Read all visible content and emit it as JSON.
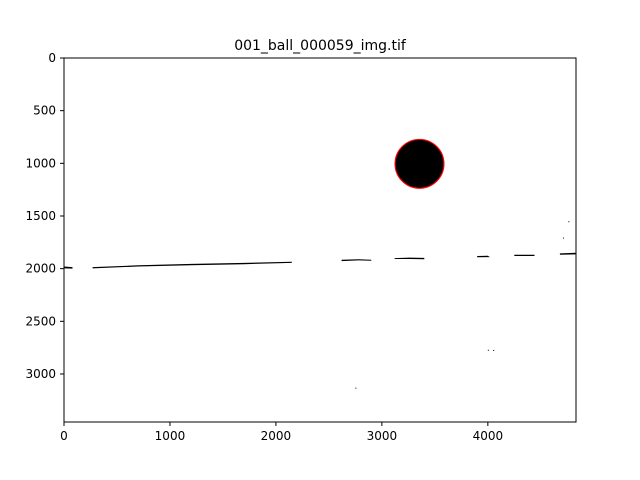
{
  "figure": {
    "title": "001_ball_000059_img.tif",
    "x_ticks": [
      0,
      1000,
      2000,
      3000,
      4000
    ],
    "y_ticks": [
      0,
      500,
      1000,
      1500,
      2000,
      2500,
      3000
    ],
    "x_extent": [
      0,
      4832
    ],
    "y_extent": [
      3456,
      0
    ],
    "image": {
      "background": "#ffffff",
      "ball": {
        "cx": 3355,
        "cy": 1005,
        "r": 230,
        "fill": "#000000",
        "outline": "#ff0000"
      },
      "streaks": [
        {
          "points": [
            [
              0,
              1980
            ],
            [
              80,
              1985
            ],
            [
              80,
              2000
            ],
            [
              0,
              1998
            ]
          ]
        },
        {
          "points": [
            [
              270,
              1985
            ],
            [
              700,
              1968
            ],
            [
              1200,
              1955
            ],
            [
              1700,
              1945
            ],
            [
              2150,
              1935
            ],
            [
              2150,
              1945
            ],
            [
              1700,
              1958
            ],
            [
              1200,
              1968
            ],
            [
              700,
              1980
            ],
            [
              270,
              1998
            ]
          ]
        },
        {
          "points": [
            [
              2620,
              1915
            ],
            [
              2780,
              1910
            ],
            [
              2900,
              1915
            ],
            [
              2900,
              1925
            ],
            [
              2780,
              1922
            ],
            [
              2620,
              1928
            ]
          ]
        },
        {
          "points": [
            [
              3120,
              1900
            ],
            [
              3260,
              1895
            ],
            [
              3400,
              1898
            ],
            [
              3400,
              1910
            ],
            [
              3260,
              1908
            ],
            [
              3120,
              1908
            ]
          ]
        },
        {
          "points": [
            [
              3900,
              1880
            ],
            [
              4000,
              1878
            ],
            [
              4020,
              1890
            ],
            [
              3900,
              1892
            ]
          ]
        },
        {
          "points": [
            [
              4250,
              1868
            ],
            [
              4440,
              1868
            ],
            [
              4440,
              1880
            ],
            [
              4250,
              1880
            ]
          ]
        },
        {
          "points": [
            [
              4680,
              1855
            ],
            [
              4832,
              1850
            ],
            [
              4832,
              1865
            ],
            [
              4680,
              1868
            ]
          ]
        }
      ],
      "specks": [
        {
          "x": 4760,
          "y": 1550
        },
        {
          "x": 4710,
          "y": 1705
        },
        {
          "x": 4000,
          "y": 2770
        },
        {
          "x": 4050,
          "y": 2772
        },
        {
          "x": 2750,
          "y": 3130
        }
      ]
    }
  }
}
